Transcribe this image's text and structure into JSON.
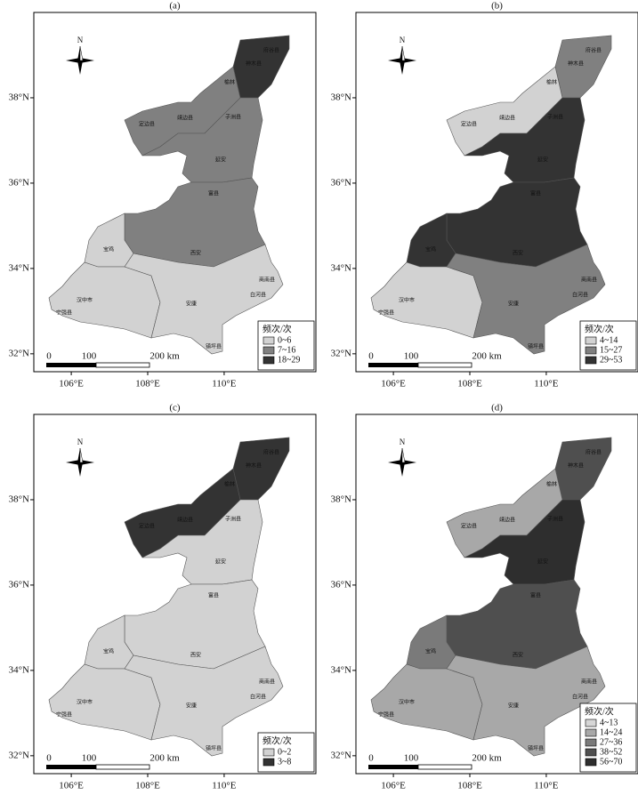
{
  "north_label": "N",
  "axes": {
    "xlim": [
      105.02,
      112.4
    ],
    "ylim": [
      31.58,
      40
    ],
    "xticks": [
      {
        "value": 106,
        "label": "106°E"
      },
      {
        "value": 108,
        "label": "108°E"
      },
      {
        "value": 110,
        "label": "110°E"
      }
    ],
    "yticks": [
      {
        "value": 38,
        "label": "38°N"
      },
      {
        "value": 36,
        "label": "36°N"
      },
      {
        "value": 34,
        "label": "34°N"
      },
      {
        "value": 32,
        "label": "32°N"
      }
    ]
  },
  "scale_bar": {
    "labels": [
      "0",
      "100",
      "200 km"
    ]
  },
  "county_labels": [
    "府谷县",
    "神木县",
    "榆林",
    "定边县",
    "靖边县",
    "子洲县",
    "延安",
    "富县",
    "宝鸡",
    "西安",
    "汉中市",
    "宁强县",
    "安康",
    "白河县",
    "镇坪县",
    "商南县"
  ],
  "panels": [
    {
      "label": "(a)",
      "legend": {
        "title": "频次/次",
        "items": [
          {
            "label": "0~6",
            "color": "#d2d2d2"
          },
          {
            "label": "7~16",
            "color": "#808080"
          },
          {
            "label": "18~29",
            "color": "#333333"
          }
        ]
      }
    },
    {
      "label": "(b)",
      "legend": {
        "title": "频次/次",
        "items": [
          {
            "label": "4~14",
            "color": "#d2d2d2"
          },
          {
            "label": "15~27",
            "color": "#808080"
          },
          {
            "label": "29~53",
            "color": "#333333"
          }
        ]
      }
    },
    {
      "label": "(c)",
      "legend": {
        "title": "频次/次",
        "items": [
          {
            "label": "0~2",
            "color": "#d2d2d2"
          },
          {
            "label": "3~8",
            "color": "#333333"
          }
        ]
      }
    },
    {
      "label": "(d)",
      "legend": {
        "title": "频次/次",
        "items": [
          {
            "label": "4~13",
            "color": "#d6d6d6"
          },
          {
            "label": "14~24",
            "color": "#a8a8a8"
          },
          {
            "label": "27~36",
            "color": "#7a7a7a"
          },
          {
            "label": "38~52",
            "color": "#4f4f4f"
          },
          {
            "label": "56~70",
            "color": "#2e2e2e"
          }
        ]
      }
    }
  ]
}
